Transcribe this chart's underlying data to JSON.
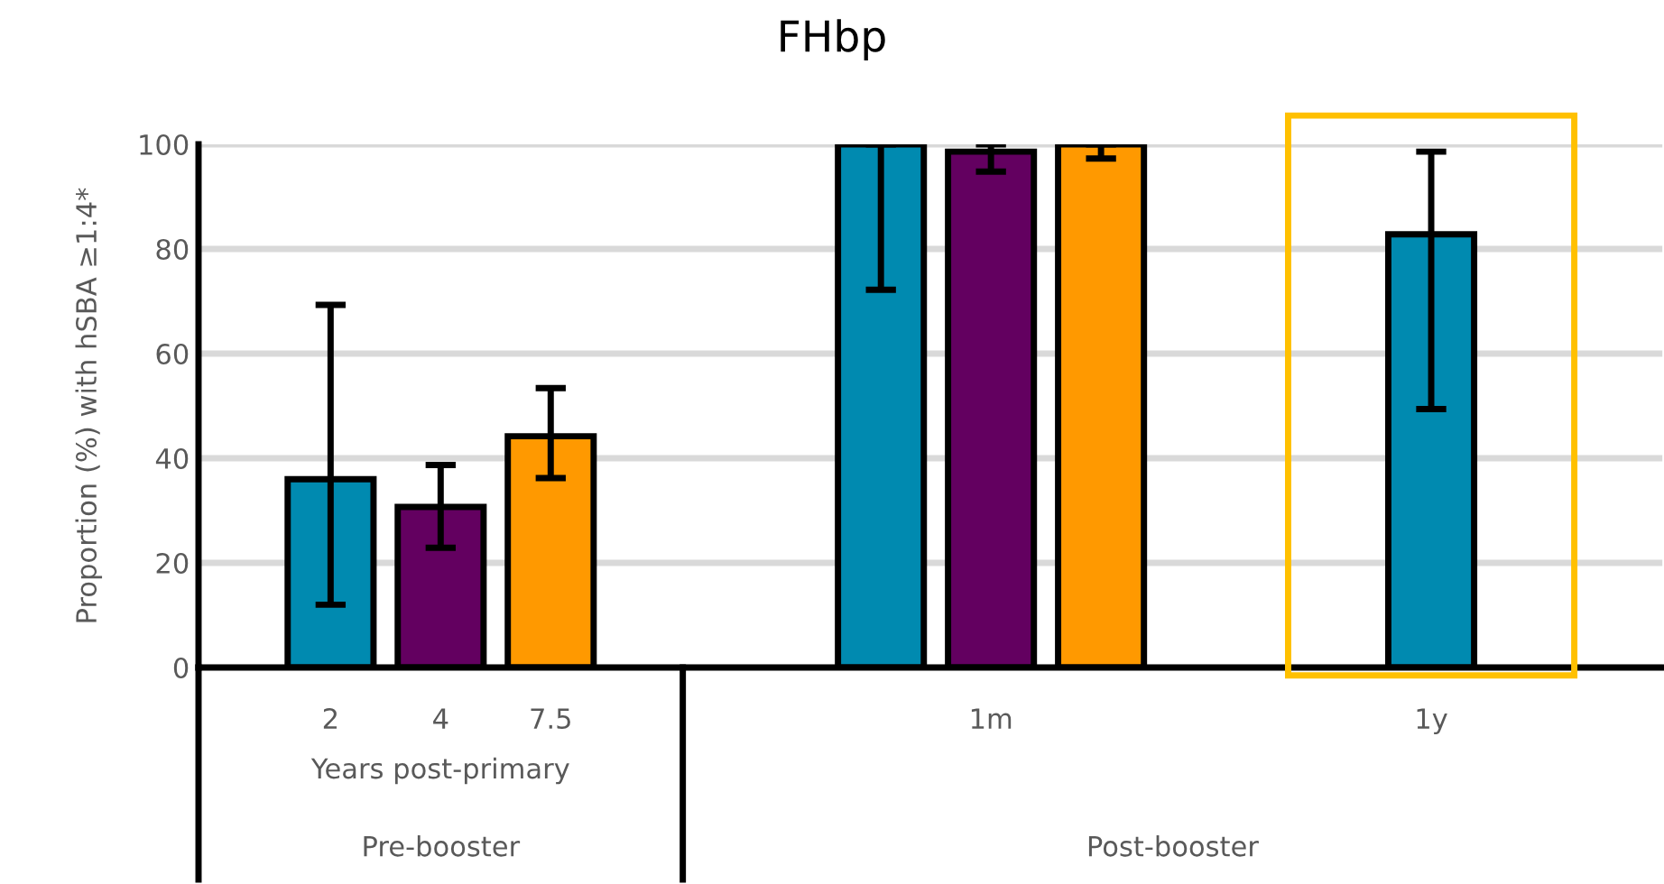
{
  "chart_data": {
    "type": "bar",
    "title": "FHbp",
    "ylabel": "Proportion (%) with hSBA ≥1:4*",
    "categories": [
      "2",
      "4",
      "7.5",
      null,
      null,
      null,
      "1m",
      null,
      null,
      null,
      "1y"
    ],
    "values": [
      36,
      30.7,
      44.2,
      null,
      null,
      100,
      98.6,
      100,
      null,
      null,
      82.8
    ],
    "colors": [
      "#008ab0",
      "#630060",
      "#ff9900",
      null,
      null,
      "#008ab0",
      "#630060",
      "#ff9900",
      null,
      null,
      "#008ab0"
    ],
    "errors": [
      [
        12,
        69.3
      ],
      [
        22.9,
        38.7
      ],
      [
        36.2,
        53.4
      ],
      null,
      null,
      [
        72.2,
        100
      ],
      [
        94.8,
        100
      ],
      [
        97.3,
        100
      ],
      null,
      null,
      [
        49.4,
        98.6
      ]
    ],
    "ylim": [
      0,
      100
    ],
    "yticks": [
      0,
      20,
      40,
      60,
      80,
      100
    ],
    "grid": "y",
    "annotations": [
      "Years post-primary",
      "Pre-booster",
      "Post-booster"
    ]
  }
}
